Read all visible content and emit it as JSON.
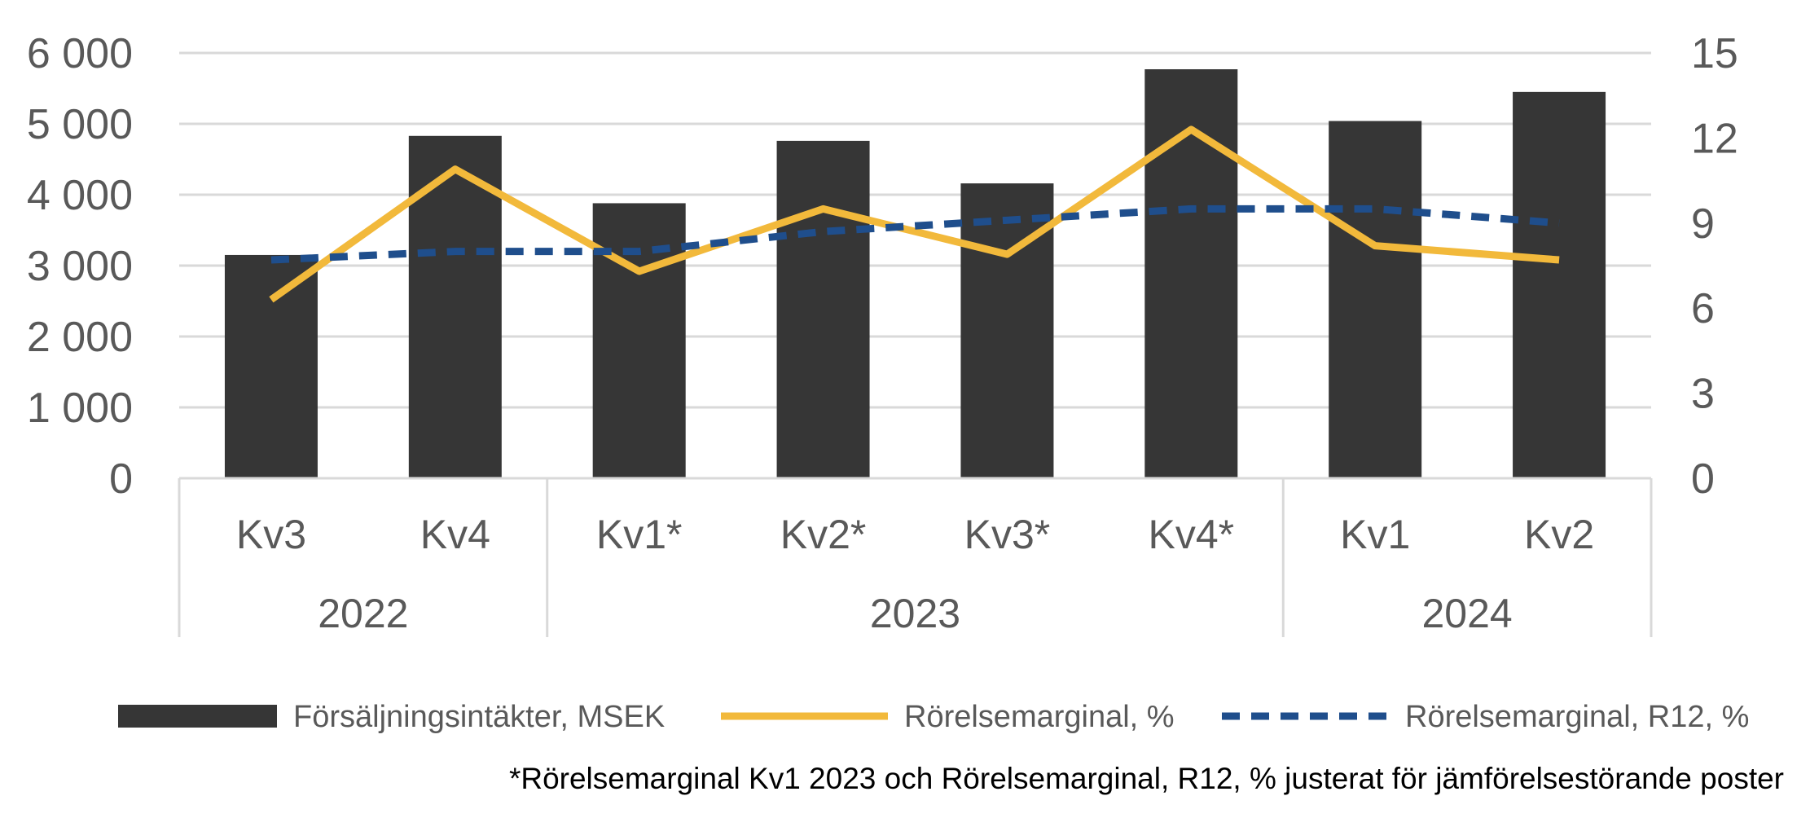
{
  "chart_data": {
    "type": "bar+line",
    "categories": [
      "Kv3",
      "Kv4",
      "Kv1*",
      "Kv2*",
      "Kv3*",
      "Kv4*",
      "Kv1",
      "Kv2"
    ],
    "groups": [
      {
        "label": "2022",
        "count": 2
      },
      {
        "label": "2023",
        "count": 4
      },
      {
        "label": "2024",
        "count": 2
      }
    ],
    "series": [
      {
        "name": "Försäljningsintäkter, MSEK",
        "type": "bar",
        "axis": "left",
        "color": "#363636",
        "values": [
          3150,
          4830,
          3880,
          4760,
          4160,
          5770,
          5040,
          5450
        ]
      },
      {
        "name": "Rörelsemarginal, %",
        "type": "line",
        "axis": "right",
        "color": "#F2B93B",
        "values": [
          6.3,
          10.9,
          7.3,
          9.5,
          7.9,
          12.3,
          8.2,
          7.7
        ]
      },
      {
        "name": "Rörelsemarginal, R12, %",
        "type": "line-dashed",
        "axis": "right",
        "color": "#1F4E8C",
        "values": [
          7.7,
          8.0,
          8.0,
          8.7,
          9.1,
          9.5,
          9.5,
          9.0
        ]
      }
    ],
    "left_axis": {
      "ylim": [
        0,
        6000
      ],
      "ticks": [
        0,
        1000,
        2000,
        3000,
        4000,
        5000,
        6000
      ],
      "tick_labels": [
        "0",
        "1 000",
        "2 000",
        "3 000",
        "4 000",
        "5 000",
        "6 000"
      ]
    },
    "right_axis": {
      "ylim": [
        0,
        15
      ],
      "ticks": [
        0,
        3,
        6,
        9,
        12,
        15
      ],
      "tick_labels": [
        "0",
        "3",
        "6",
        "9",
        "12",
        "15"
      ]
    },
    "grid": true,
    "legend_position": "bottom",
    "footnote": "*Rörelsemarginal Kv1 2023 och Rörelsemarginal, R12, % justerat för jämförelsestörande poster"
  }
}
